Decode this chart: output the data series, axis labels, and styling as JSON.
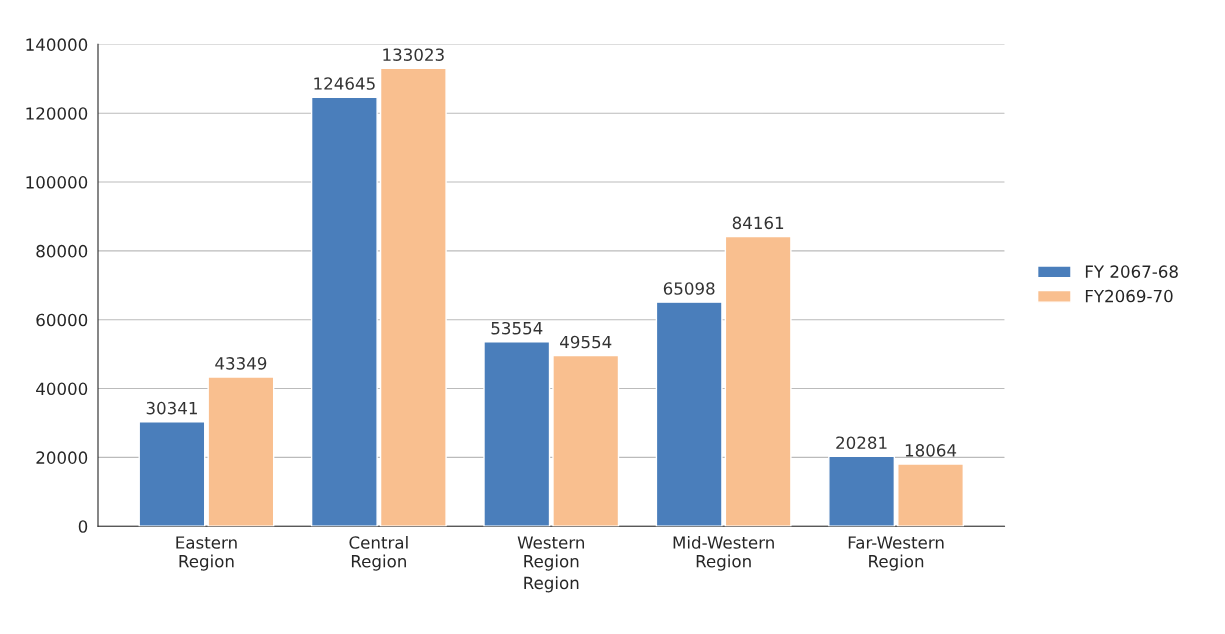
{
  "chart_data": {
    "type": "bar",
    "categories": [
      "Eastern\nRegion",
      "Central\nRegion",
      "Western\nRegion",
      "Mid-Western\nRegion",
      "Far-Western\nRegion"
    ],
    "series": [
      {
        "name": "FY 2067-68",
        "color": "#4a7ebb",
        "values": [
          30341,
          124645,
          53554,
          65098,
          20281
        ]
      },
      {
        "name": "FY2069-70",
        "color": "#f9bf8f",
        "values": [
          43349,
          133023,
          49554,
          84161,
          18064
        ]
      }
    ],
    "xlabel": "Region",
    "ylim": [
      0,
      140000
    ],
    "yticks": [
      0,
      20000,
      40000,
      60000,
      80000,
      100000,
      120000,
      140000
    ],
    "grid": "y",
    "legend": "right",
    "data_labels": true
  }
}
